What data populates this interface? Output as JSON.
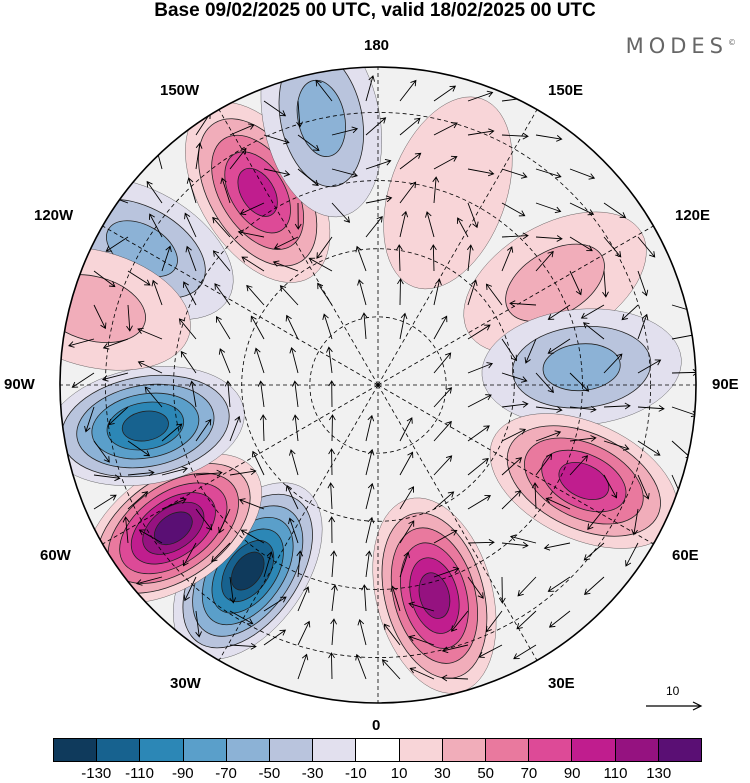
{
  "title": "Base 09/02/2025 00 UTC, valid 18/02/2025 00 UTC",
  "brand": "MODES",
  "brand_mark": "©",
  "longitude_labels": {
    "n180": "180",
    "w150": "150W",
    "e150": "150E",
    "w120": "120W",
    "e120": "120E",
    "w90": "90W",
    "e90": "90E",
    "w60": "60W",
    "e60": "60E",
    "w30": "30W",
    "e30": "30E",
    "s0": "0"
  },
  "vector_scale": {
    "value": "10"
  },
  "colorbar": {
    "colors": [
      "#0f3a5c",
      "#17628f",
      "#2c87b6",
      "#5a9fca",
      "#8cb2d6",
      "#b9c4dd",
      "#e2e0ee",
      "#ffffff",
      "#f8d5d8",
      "#f1adba",
      "#e9799e",
      "#dd4a97",
      "#c01d8e",
      "#951280",
      "#5a0f74"
    ],
    "ticks": [
      "-130",
      "-110",
      "-90",
      "-70",
      "-50",
      "-30",
      "-10",
      "10",
      "30",
      "50",
      "70",
      "90",
      "110",
      "130"
    ]
  },
  "map": {
    "background": "#f1f1f1",
    "anomalies": [
      {
        "lon": 35,
        "lat": 40,
        "value": -140
      },
      {
        "lon": 55,
        "lat": 35,
        "value": 135
      },
      {
        "lon": 80,
        "lat": 38,
        "value": -115
      },
      {
        "lon": 120,
        "lat": 30,
        "value": -50
      },
      {
        "lon": 105,
        "lat": 25,
        "value": 35
      },
      {
        "lon": 148,
        "lat": 40,
        "value": 90
      },
      {
        "lon": 168,
        "lat": 30,
        "value": -50
      },
      {
        "lon": 200,
        "lat": 45,
        "value": 20
      },
      {
        "lon": 240,
        "lat": 45,
        "value": 25
      },
      {
        "lon": 265,
        "lat": 45,
        "value": -60
      },
      {
        "lon": 295,
        "lat": 40,
        "value": 85
      },
      {
        "lon": 345,
        "lat": 42,
        "value": 105
      }
    ]
  }
}
